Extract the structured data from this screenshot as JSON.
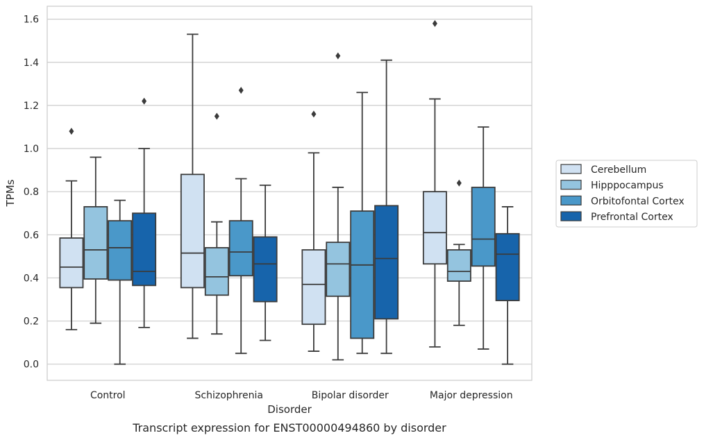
{
  "chart_data": {
    "type": "box",
    "title": "",
    "caption": "Transcript expression for ENST00000494860 by disorder",
    "xlabel": "Disorder",
    "ylabel": "TPMs",
    "ylim": [
      -0.075,
      1.66
    ],
    "yticks": [
      0.0,
      0.2,
      0.4,
      0.6,
      0.8,
      1.0,
      1.2,
      1.4,
      1.6
    ],
    "ytick_labels": [
      "0.0",
      "0.2",
      "0.4",
      "0.6",
      "0.8",
      "1.0",
      "1.2",
      "1.4",
      "1.6"
    ],
    "grid": true,
    "legend_position": "right",
    "categories": [
      "Control",
      "Schizophrenia",
      "Bipolar disorder",
      "Major depression"
    ],
    "series": [
      {
        "name": "Cerebellum",
        "color": "#d0e1f2",
        "boxes": [
          {
            "whisker_low": 0.16,
            "q1": 0.355,
            "median": 0.45,
            "q3": 0.585,
            "whisker_high": 0.85,
            "outliers": [
              1.08
            ]
          },
          {
            "whisker_low": 0.12,
            "q1": 0.355,
            "median": 0.515,
            "q3": 0.88,
            "whisker_high": 1.53,
            "outliers": []
          },
          {
            "whisker_low": 0.06,
            "q1": 0.185,
            "median": 0.37,
            "q3": 0.53,
            "whisker_high": 0.98,
            "outliers": [
              1.16
            ]
          },
          {
            "whisker_low": 0.08,
            "q1": 0.465,
            "median": 0.61,
            "q3": 0.8,
            "whisker_high": 1.23,
            "outliers": [
              1.58
            ]
          }
        ]
      },
      {
        "name": "Hipppocampus",
        "color": "#94c4df",
        "boxes": [
          {
            "whisker_low": 0.19,
            "q1": 0.395,
            "median": 0.53,
            "q3": 0.73,
            "whisker_high": 0.96,
            "outliers": []
          },
          {
            "whisker_low": 0.14,
            "q1": 0.32,
            "median": 0.405,
            "q3": 0.54,
            "whisker_high": 0.66,
            "outliers": [
              1.15
            ]
          },
          {
            "whisker_low": 0.02,
            "q1": 0.315,
            "median": 0.465,
            "q3": 0.565,
            "whisker_high": 0.82,
            "outliers": [
              1.43
            ]
          },
          {
            "whisker_low": 0.18,
            "q1": 0.385,
            "median": 0.43,
            "q3": 0.53,
            "whisker_high": 0.555,
            "outliers": [
              0.84
            ]
          }
        ]
      },
      {
        "name": "Orbitofontal Cortex",
        "color": "#4a98c9",
        "boxes": [
          {
            "whisker_low": 0.0,
            "q1": 0.39,
            "median": 0.54,
            "q3": 0.665,
            "whisker_high": 0.76,
            "outliers": []
          },
          {
            "whisker_low": 0.05,
            "q1": 0.41,
            "median": 0.52,
            "q3": 0.665,
            "whisker_high": 0.86,
            "outliers": [
              1.27
            ]
          },
          {
            "whisker_low": 0.05,
            "q1": 0.12,
            "median": 0.46,
            "q3": 0.71,
            "whisker_high": 1.26,
            "outliers": []
          },
          {
            "whisker_low": 0.07,
            "q1": 0.455,
            "median": 0.58,
            "q3": 0.82,
            "whisker_high": 1.1,
            "outliers": []
          }
        ]
      },
      {
        "name": "Prefrontal Cortex",
        "color": "#1764ab",
        "boxes": [
          {
            "whisker_low": 0.17,
            "q1": 0.365,
            "median": 0.43,
            "q3": 0.7,
            "whisker_high": 1.0,
            "outliers": [
              1.22
            ]
          },
          {
            "whisker_low": 0.11,
            "q1": 0.29,
            "median": 0.465,
            "q3": 0.59,
            "whisker_high": 0.83,
            "outliers": []
          },
          {
            "whisker_low": 0.05,
            "q1": 0.21,
            "median": 0.49,
            "q3": 0.735,
            "whisker_high": 1.41,
            "outliers": []
          },
          {
            "whisker_low": 0.0,
            "q1": 0.295,
            "median": 0.51,
            "q3": 0.605,
            "whisker_high": 0.73,
            "outliers": []
          }
        ]
      }
    ]
  }
}
